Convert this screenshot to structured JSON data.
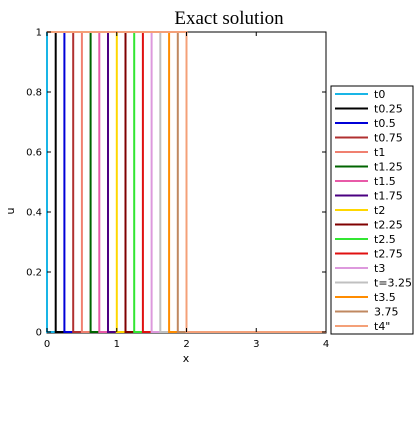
{
  "chart_data": {
    "type": "line",
    "title": "Exact solution",
    "xlabel": "x",
    "ylabel": "u",
    "xlim": [
      0,
      4
    ],
    "ylim": [
      0,
      1
    ],
    "xticks": [
      0,
      1,
      2,
      3,
      4
    ],
    "yticks": [
      0,
      0.2,
      0.4,
      0.6,
      0.8,
      1
    ],
    "xtick_labels": [
      "0",
      "1",
      "2",
      "3",
      "4"
    ],
    "ytick_labels": [
      "0",
      "0.2",
      "0.4",
      "0.6",
      "0.8",
      "1"
    ],
    "legend_position": "right",
    "series": [
      {
        "name": "t0",
        "color": "#19b5e6",
        "x": [
          0,
          0.0,
          0.0,
          4
        ],
        "y": [
          1,
          1,
          0,
          0
        ]
      },
      {
        "name": "t0.25",
        "color": "#000000",
        "x": [
          0,
          0.125,
          0.125,
          4
        ],
        "y": [
          1,
          1,
          0,
          0
        ]
      },
      {
        "name": "t0.5",
        "color": "#0000d8",
        "x": [
          0,
          0.25,
          0.25,
          4
        ],
        "y": [
          1,
          1,
          0,
          0
        ]
      },
      {
        "name": "t0.75",
        "color": "#b03030",
        "x": [
          0,
          0.375,
          0.375,
          4
        ],
        "y": [
          1,
          1,
          0,
          0
        ]
      },
      {
        "name": "t1",
        "color": "#f08070",
        "x": [
          0,
          0.5,
          0.5,
          4
        ],
        "y": [
          1,
          1,
          0,
          0
        ]
      },
      {
        "name": "t1.25",
        "color": "#006400",
        "x": [
          0,
          0.625,
          0.625,
          4
        ],
        "y": [
          1,
          1,
          0,
          0
        ]
      },
      {
        "name": "t1.5",
        "color": "#e85aa8",
        "x": [
          0,
          0.75,
          0.75,
          4
        ],
        "y": [
          1,
          1,
          0,
          0
        ]
      },
      {
        "name": "t1.75",
        "color": "#4b0082",
        "x": [
          0,
          0.875,
          0.875,
          4
        ],
        "y": [
          1,
          1,
          0,
          0
        ]
      },
      {
        "name": "t2",
        "color": "#ffd700",
        "x": [
          0,
          1.0,
          1.0,
          4
        ],
        "y": [
          1,
          1,
          0,
          0
        ]
      },
      {
        "name": "t2.25",
        "color": "#800000",
        "x": [
          0,
          1.125,
          1.125,
          4
        ],
        "y": [
          1,
          1,
          0,
          0
        ]
      },
      {
        "name": "t2.5",
        "color": "#32e632",
        "x": [
          0,
          1.25,
          1.25,
          4
        ],
        "y": [
          1,
          1,
          0,
          0
        ]
      },
      {
        "name": "t2.75",
        "color": "#e01010",
        "x": [
          0,
          1.375,
          1.375,
          4
        ],
        "y": [
          1,
          1,
          0,
          0
        ]
      },
      {
        "name": "t3",
        "color": "#dd99dd",
        "x": [
          0,
          1.5,
          1.5,
          4
        ],
        "y": [
          1,
          1,
          0,
          0
        ]
      },
      {
        "name": "t=3.25",
        "color": "#c0c0c0",
        "x": [
          0,
          1.625,
          1.625,
          4
        ],
        "y": [
          1,
          1,
          0,
          0
        ]
      },
      {
        "name": "t3.5",
        "color": "#ff8c00",
        "x": [
          0,
          1.75,
          1.75,
          4
        ],
        "y": [
          1,
          1,
          0,
          0
        ]
      },
      {
        "name": "3.75",
        "color": "#c08860",
        "x": [
          0,
          1.875,
          1.875,
          4
        ],
        "y": [
          1,
          1,
          0,
          0
        ]
      },
      {
        "name": "t4\"",
        "color": "#f4a078",
        "x": [
          0,
          2.0,
          2.0,
          4
        ],
        "y": [
          1,
          1,
          0,
          0
        ]
      }
    ]
  }
}
